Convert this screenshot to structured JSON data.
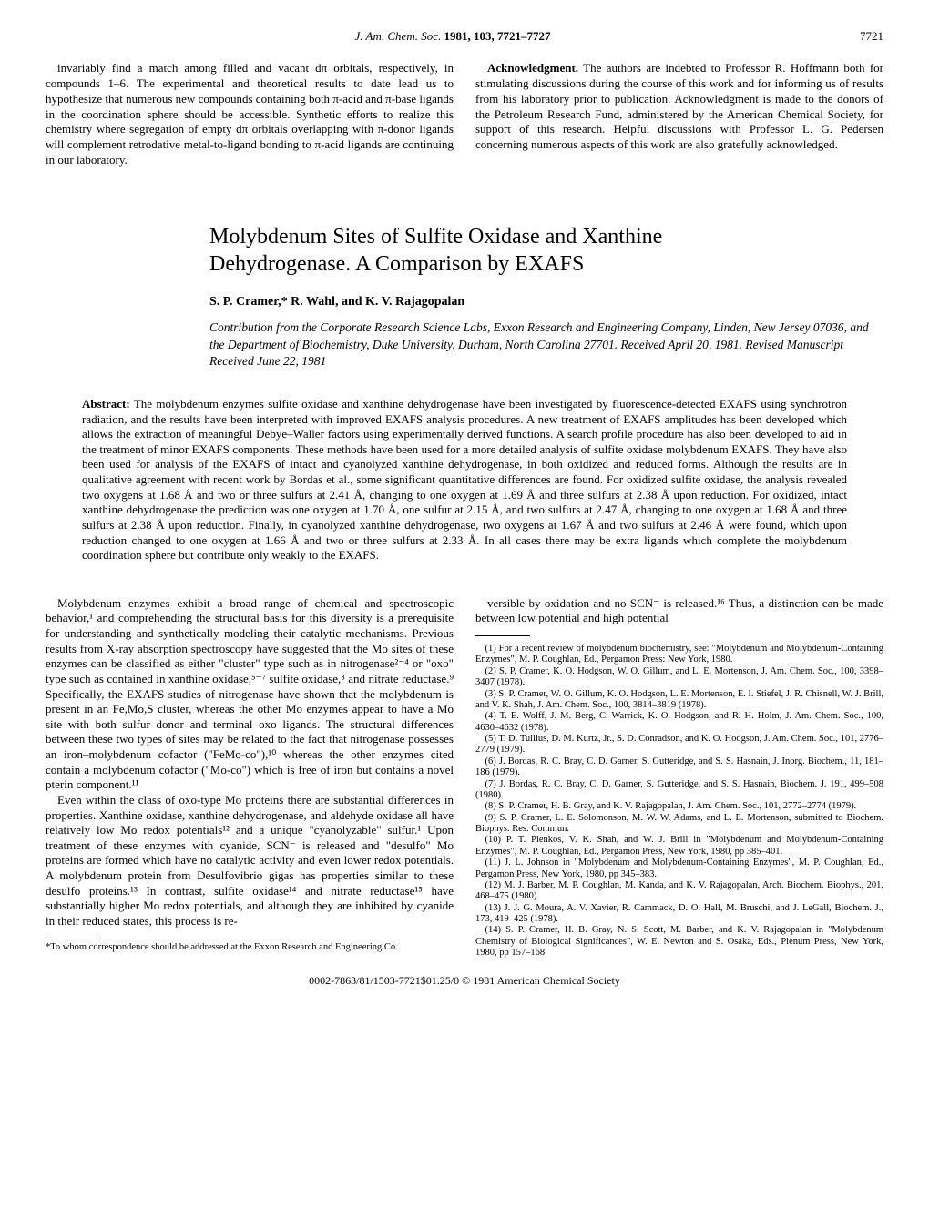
{
  "header": {
    "journal_italic": "J. Am. Chem. Soc.",
    "year_vol_pages": "1981, 103, 7721–7727",
    "page_number": "7721"
  },
  "prev_article": {
    "left_para": "invariably find a match among filled and vacant dπ orbitals, respectively, in compounds 1–6. The experimental and theoretical results to date lead us to hypothesize that numerous new compounds containing both π-acid and π-base ligands in the coordination sphere should be accessible. Synthetic efforts to realize this chemistry where segregation of empty dπ orbitals overlapping with π-donor ligands will complement retrodative metal-to-ligand bonding to π-acid ligands are continuing in our laboratory.",
    "ack_label": "Acknowledgment.",
    "right_para": "The authors are indebted to Professor R. Hoffmann both for stimulating discussions during the course of this work and for informing us of results from his laboratory prior to publication. Acknowledgment is made to the donors of the Petroleum Research Fund, administered by the American Chemical Society, for support of this research. Helpful discussions with Professor L. G. Pedersen concerning numerous aspects of this work are also gratefully acknowledged."
  },
  "title_line1": "Molybdenum Sites of Sulfite Oxidase and Xanthine",
  "title_line2": "Dehydrogenase. A Comparison by EXAFS",
  "authors": "S. P. Cramer,* R. Wahl, and K. V. Rajagopalan",
  "affiliation": "Contribution from the Corporate Research Science Labs, Exxon Research and Engineering Company, Linden, New Jersey 07036, and the Department of Biochemistry, Duke University, Durham, North Carolina 27701. Received April 20, 1981. Revised Manuscript Received June 22, 1981",
  "abstract_label": "Abstract:",
  "abstract": "The molybdenum enzymes sulfite oxidase and xanthine dehydrogenase have been investigated by fluorescence-detected EXAFS using synchrotron radiation, and the results have been interpreted with improved EXAFS analysis procedures. A new treatment of EXAFS amplitudes has been developed which allows the extraction of meaningful Debye–Waller factors using experimentally derived functions. A search profile procedure has also been developed to aid in the treatment of minor EXAFS components. These methods have been used for a more detailed analysis of sulfite oxidase molybdenum EXAFS. They have also been used for analysis of the EXAFS of intact and cyanolyzed xanthine dehydrogenase, in both oxidized and reduced forms. Although the results are in qualitative agreement with recent work by Bordas et al., some significant quantitative differences are found. For oxidized sulfite oxidase, the analysis revealed two oxygens at 1.68 Å and two or three sulfurs at 2.41 Å, changing to one oxygen at 1.69 Å and three sulfurs at 2.38 Å upon reduction. For oxidized, intact xanthine dehydrogenase the prediction was one oxygen at 1.70 Å, one sulfur at 2.15 Å, and two sulfurs at 2.47 Å, changing to one oxygen at 1.68 Å and three sulfurs at 2.38 Å upon reduction. Finally, in cyanolyzed xanthine dehydrogenase, two oxygens at 1.67 Å and two sulfurs at 2.46 Å were found, which upon reduction changed to one oxygen at 1.66 Å and two or three sulfurs at 2.33 Å. In all cases there may be extra ligands which complete the molybdenum coordination sphere but contribute only weakly to the EXAFS.",
  "body": {
    "left": {
      "p1": "Molybdenum enzymes exhibit a broad range of chemical and spectroscopic behavior,¹ and comprehending the structural basis for this diversity is a prerequisite for understanding and synthetically modeling their catalytic mechanisms. Previous results from X-ray absorption spectroscopy have suggested that the Mo sites of these enzymes can be classified as either \"cluster\" type such as in nitrogenase²⁻⁴ or \"oxo\" type such as contained in xanthine oxidase,⁵⁻⁷ sulfite oxidase,⁸ and nitrate reductase.⁹ Specifically, the EXAFS studies of nitrogenase have shown that the molybdenum is present in an Fe,Mo,S cluster, whereas the other Mo enzymes appear to have a Mo site with both sulfur donor and terminal oxo ligands. The structural differences between these two types of sites may be related to the fact that nitrogenase possesses an iron–molybdenum cofactor (\"FeMo-co\"),¹⁰ whereas the other enzymes cited contain a molybdenum cofactor (\"Mo-co\") which is free of iron but contains a novel pterin component.¹¹",
      "p2": "Even within the class of oxo-type Mo proteins there are substantial differences in properties. Xanthine oxidase, xanthine dehydrogenase, and aldehyde oxidase all have relatively low Mo redox potentials¹² and a unique \"cyanolyzable\" sulfur.¹ Upon treatment of these enzymes with cyanide, SCN⁻ is released and \"desulfo\" Mo proteins are formed which have no catalytic activity and even lower redox potentials. A molybdenum protein from Desulfovibrio gigas has properties similar to these desulfo proteins.¹³ In contrast, sulfite oxidase¹⁴ and nitrate reductase¹⁵ have substantially higher Mo redox potentials, and although they are inhibited by cyanide in their reduced states, this process is re-",
      "footnote": "*To whom correspondence should be addressed at the Exxon Research and Engineering Co."
    },
    "right": {
      "p1": "versible by oxidation and no SCN⁻ is released.¹⁶ Thus, a distinction can be made between low potential and high potential"
    }
  },
  "refs": [
    "(1) For a recent review of molybdenum biochemistry, see: \"Molybdenum and Molybdenum-Containing Enzymes\", M. P. Coughlan, Ed., Pergamon Press: New York, 1980.",
    "(2) S. P. Cramer, K. O. Hodgson, W. O. Gillum, and L. E. Mortenson, J. Am. Chem. Soc., 100, 3398–3407 (1978).",
    "(3) S. P. Cramer, W. O. Gillum, K. O. Hodgson, L. E. Mortenson, E. I. Stiefel, J. R. Chisnell, W. J. Brill, and V. K. Shah, J. Am. Chem. Soc., 100, 3814–3819 (1978).",
    "(4) T. E. Wolff, J. M. Berg, C. Warrick, K. O. Hodgson, and R. H. Holm, J. Am. Chem. Soc., 100, 4630–4632 (1978).",
    "(5) T. D. Tullius, D. M. Kurtz, Jr., S. D. Conradson, and K. O. Hodgson, J. Am. Chem. Soc., 101, 2776–2779 (1979).",
    "(6) J. Bordas, R. C. Bray, C. D. Garner, S. Gutteridge, and S. S. Hasnain, J. Inorg. Biochem., 11, 181–186 (1979).",
    "(7) J. Bordas, R. C. Bray, C. D. Garner, S. Gutteridge, and S. S. Hasnain, Biochem. J. 191, 499–508 (1980).",
    "(8) S. P. Cramer, H. B. Gray, and K. V. Rajagopalan, J. Am. Chem. Soc., 101, 2772–2774 (1979).",
    "(9) S. P. Cramer, L. E. Solomonson, M. W. W. Adams, and L. E. Mortenson, submitted to Biochem. Biophys. Res. Commun.",
    "(10) P. T. Pienkos, V. K. Shah, and W. J. Brill in \"Molybdenum and Molybdenum-Containing Enzymes\", M. P. Coughlan, Ed., Pergamon Press, New York, 1980, pp 385–401.",
    "(11) J. L. Johnson in \"Molybdenum and Molybdenum-Containing Enzymes\", M. P. Coughlan, Ed., Pergamon Press, New York, 1980, pp 345–383.",
    "(12) M. J. Barber, M. P. Coughlan, M. Kanda, and K. V. Rajagopalan, Arch. Biochem. Biophys., 201, 468–475 (1980).",
    "(13) J. J. G. Moura, A. V. Xavier, R. Cammack, D. O. Hall, M. Bruschi, and J. LeGall, Biochem. J., 173, 419–425 (1978).",
    "(14) S. P. Cramer, H. B. Gray, N. S. Scott, M. Barber, and K. V. Rajagopalan in \"Molybdenum Chemistry of Biological Significances\", W. E. Newton and S. Osaka, Eds., Plenum Press, New York, 1980, pp 157–168."
  ],
  "footer": "0002-7863/81/1503-7721$01.25/0   © 1981 American Chemical Society"
}
